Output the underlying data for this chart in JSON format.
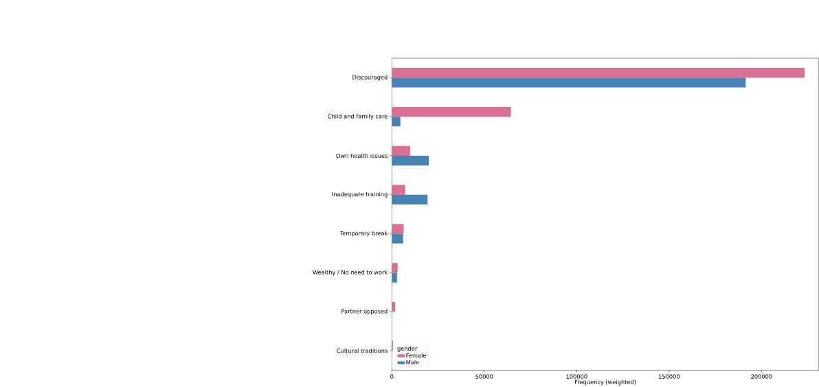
{
  "chart_data": {
    "type": "bar",
    "orientation": "horizontal",
    "xlabel": "Frequency (weighted)",
    "legend_title": "gender",
    "legend": "bottom left",
    "categories": [
      "Discouraged",
      "Child and family care",
      "Own health issues",
      "Inadequate training",
      "Temporary break",
      "Wealthy / No need to work",
      "Partner opposed",
      "Cultural traditions"
    ],
    "series": [
      {
        "name": "Female",
        "color": "#dc7093",
        "values": [
          223300,
          64400,
          9900,
          7200,
          6400,
          3100,
          1800,
          600
        ]
      },
      {
        "name": "Male",
        "color": "#4682b4",
        "values": [
          191500,
          4600,
          20000,
          19300,
          6100,
          2800,
          0,
          0
        ]
      }
    ],
    "xlim": [
      0,
      231000
    ],
    "xticks": [
      0,
      50000,
      100000,
      150000,
      200000
    ],
    "grid": false
  }
}
